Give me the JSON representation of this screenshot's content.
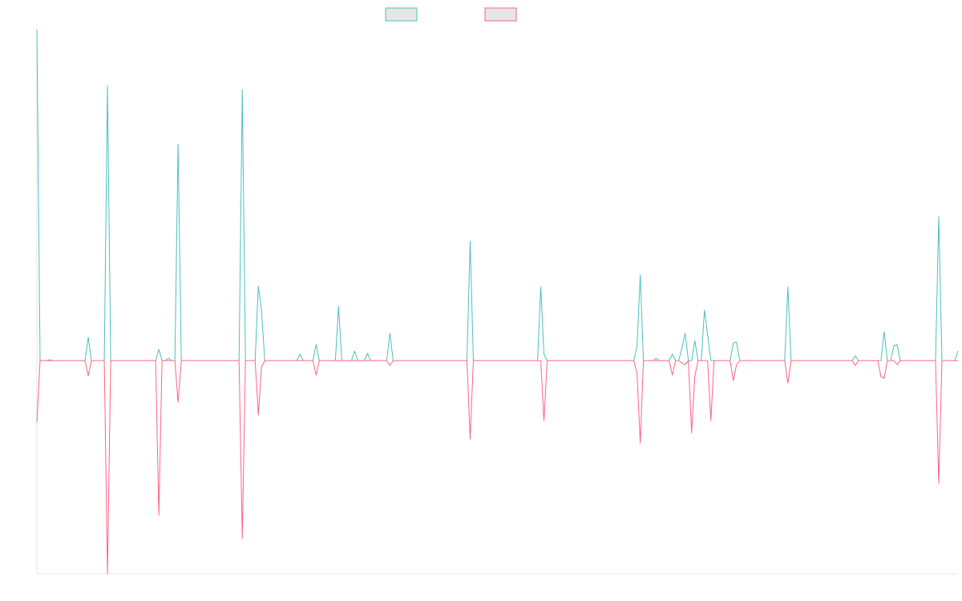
{
  "chart_data": {
    "type": "line",
    "ylim": [
      -266,
      415
    ],
    "series": [
      {
        "color": "#4bc0c0",
        "values": [
          413,
          0,
          0,
          0,
          1,
          0,
          0,
          0,
          0,
          0,
          0,
          0,
          0,
          0,
          0,
          0,
          29,
          0,
          0,
          0,
          0,
          0,
          343,
          0,
          0,
          0,
          0,
          0,
          0,
          0,
          0,
          0,
          0,
          0,
          0,
          0,
          0,
          0,
          14,
          0,
          0,
          3,
          0,
          0,
          270,
          0,
          0,
          0,
          0,
          0,
          0,
          0,
          0,
          0,
          0,
          0,
          0,
          0,
          0,
          0,
          0,
          0,
          0,
          0,
          338,
          0,
          0,
          0,
          0,
          93,
          62,
          0,
          0,
          0,
          0,
          0,
          0,
          0,
          0,
          0,
          0,
          0,
          8,
          0,
          0,
          0,
          0,
          20,
          0,
          0,
          0,
          0,
          0,
          0,
          68,
          0,
          0,
          0,
          0,
          12,
          0,
          0,
          0,
          9,
          0,
          0,
          0,
          0,
          0,
          0,
          34,
          0,
          0,
          0,
          0,
          0,
          0,
          0,
          0,
          0,
          0,
          0,
          0,
          0,
          0,
          0,
          0,
          0,
          0,
          0,
          0,
          0,
          0,
          0,
          0,
          149,
          0,
          0,
          0,
          0,
          0,
          0,
          0,
          0,
          0,
          0,
          0,
          0,
          0,
          0,
          0,
          0,
          0,
          0,
          0,
          0,
          0,
          92,
          8,
          0,
          0,
          0,
          0,
          0,
          0,
          0,
          0,
          0,
          0,
          0,
          0,
          0,
          0,
          0,
          0,
          0,
          0,
          0,
          0,
          0,
          0,
          0,
          0,
          0,
          0,
          0,
          0,
          18,
          107,
          0,
          0,
          0,
          0,
          3,
          0,
          0,
          0,
          0,
          8,
          0,
          0,
          16,
          34,
          0,
          0,
          25,
          0,
          0,
          63,
          32,
          0,
          0,
          0,
          0,
          0,
          0,
          0,
          22,
          23,
          0,
          0,
          0,
          0,
          0,
          0,
          0,
          0,
          0,
          0,
          0,
          0,
          0,
          0,
          0,
          92,
          0,
          0,
          0,
          0,
          0,
          0,
          0,
          0,
          0,
          0,
          0,
          0,
          0,
          0,
          0,
          0,
          0,
          0,
          0,
          0,
          6,
          0,
          0,
          0,
          0,
          0,
          0,
          0,
          0,
          36,
          0,
          0,
          18,
          20,
          0,
          0,
          0,
          0,
          0,
          0,
          0,
          0,
          0,
          0,
          0,
          0,
          180,
          0,
          0,
          0,
          0,
          0,
          12
        ]
      },
      {
        "color": "#ff6384",
        "values": [
          -77,
          0,
          0,
          0,
          0,
          0,
          0,
          0,
          0,
          0,
          0,
          0,
          0,
          0,
          0,
          0,
          -19,
          0,
          0,
          0,
          0,
          0,
          -266,
          0,
          0,
          0,
          0,
          0,
          0,
          0,
          0,
          0,
          0,
          0,
          0,
          0,
          0,
          0,
          -193,
          0,
          0,
          0,
          0,
          0,
          -52,
          0,
          0,
          0,
          0,
          0,
          0,
          0,
          0,
          0,
          0,
          0,
          0,
          0,
          0,
          0,
          0,
          0,
          0,
          0,
          -222,
          0,
          0,
          0,
          0,
          -68,
          -8,
          0,
          0,
          0,
          0,
          0,
          0,
          0,
          0,
          0,
          0,
          0,
          0,
          0,
          0,
          0,
          0,
          -18,
          0,
          0,
          0,
          0,
          0,
          0,
          0,
          0,
          0,
          0,
          0,
          0,
          0,
          0,
          0,
          0,
          0,
          0,
          0,
          0,
          0,
          0,
          -6,
          0,
          0,
          0,
          0,
          0,
          0,
          0,
          0,
          0,
          0,
          0,
          0,
          0,
          0,
          0,
          0,
          0,
          0,
          0,
          0,
          0,
          0,
          0,
          0,
          -98,
          0,
          0,
          0,
          0,
          0,
          0,
          0,
          0,
          0,
          0,
          0,
          0,
          0,
          0,
          0,
          0,
          0,
          0,
          0,
          0,
          0,
          0,
          -75,
          0,
          0,
          0,
          0,
          0,
          0,
          0,
          0,
          0,
          0,
          0,
          0,
          0,
          0,
          0,
          0,
          0,
          0,
          0,
          0,
          0,
          0,
          0,
          0,
          0,
          0,
          0,
          0,
          -16,
          -103,
          0,
          0,
          0,
          0,
          0,
          0,
          0,
          0,
          0,
          -18,
          0,
          0,
          -3,
          -5,
          0,
          -90,
          -20,
          0,
          0,
          0,
          0,
          -75,
          0,
          0,
          0,
          0,
          0,
          0,
          -25,
          -5,
          0,
          0,
          0,
          0,
          0,
          0,
          0,
          0,
          0,
          0,
          0,
          0,
          0,
          0,
          0,
          -28,
          0,
          0,
          0,
          0,
          0,
          0,
          0,
          0,
          0,
          0,
          0,
          0,
          0,
          0,
          0,
          0,
          0,
          0,
          0,
          0,
          -6,
          0,
          0,
          0,
          0,
          0,
          0,
          0,
          -20,
          -22,
          0,
          0,
          0,
          -5,
          0,
          0,
          0,
          0,
          0,
          0,
          0,
          0,
          0,
          0,
          0,
          0,
          -153,
          0,
          0,
          0,
          0,
          0,
          0
        ]
      }
    ]
  }
}
